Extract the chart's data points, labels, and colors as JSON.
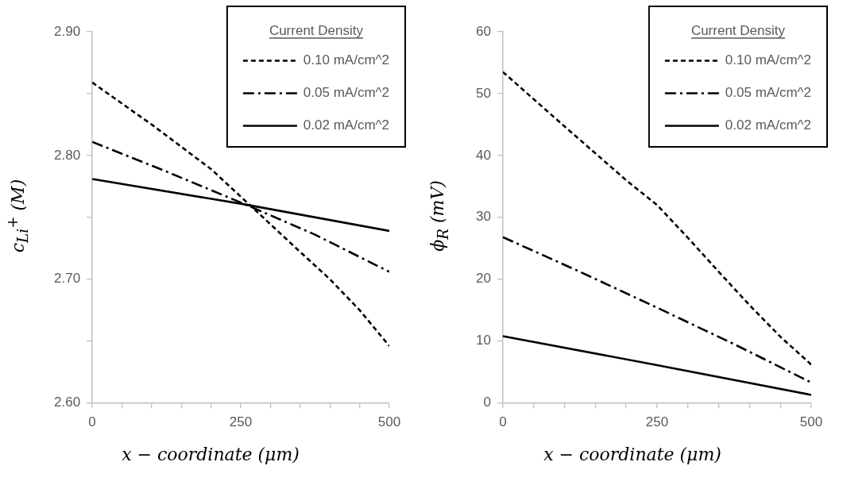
{
  "chart_data": [
    {
      "type": "line",
      "xlabel": "x − coordinate (μm)",
      "ylabel": "c$_{Li}$$^{+}$ (M)",
      "legend_title": "Current Density",
      "legend": "top right",
      "grid": false,
      "marker": "none",
      "x": [
        0,
        100,
        200,
        265,
        350,
        400,
        450,
        500
      ],
      "xlim": [
        0,
        500
      ],
      "xticks": [
        0,
        {
          "value": 50,
          "label": null
        },
        {
          "value": 100,
          "label": null
        },
        {
          "value": 150,
          "label": null
        },
        {
          "value": 200,
          "label": null
        },
        250,
        {
          "value": 300,
          "label": null
        },
        {
          "value": 350,
          "label": null
        },
        {
          "value": 400,
          "label": null
        },
        {
          "value": 450,
          "label": null
        },
        500
      ],
      "ylim": [
        2.6,
        2.9
      ],
      "yticks": [
        {
          "value": 2.6,
          "label": "2.60"
        },
        {
          "value": 2.65,
          "label": null
        },
        {
          "value": 2.7,
          "label": "2.70"
        },
        {
          "value": 2.75,
          "label": null
        },
        {
          "value": 2.8,
          "label": "2.80"
        },
        {
          "value": 2.85,
          "label": null
        },
        {
          "value": 2.9,
          "label": "2.90"
        }
      ],
      "series": [
        {
          "name": "0.10 mA/cm^2",
          "color": "#000000",
          "line_style": "dashed",
          "values": [
            2.859,
            2.825,
            2.789,
            2.76,
            2.722,
            2.7,
            2.675,
            2.646
          ]
        },
        {
          "name": "0.05 mA/cm^2",
          "color": "#000000",
          "line_style": "dashdot",
          "x": [
            0,
            125,
            250,
            375,
            500
          ],
          "values": [
            2.811,
            2.787,
            2.762,
            2.736,
            2.706
          ]
        },
        {
          "name": "0.02 mA/cm^2",
          "color": "#000000",
          "line_style": "solid",
          "x": [
            0,
            250,
            500
          ],
          "values": [
            2.781,
            2.761,
            2.739
          ]
        }
      ]
    },
    {
      "type": "line",
      "xlabel": "x − coordinate (μm)",
      "ylabel": "ϕ$_{R}$ (mV)",
      "legend_title": "Current Density",
      "legend": "top right",
      "grid": false,
      "marker": "none",
      "x": [
        0,
        100,
        200,
        250,
        300,
        350,
        400,
        450,
        500
      ],
      "xlim": [
        0,
        500
      ],
      "xticks": [
        0,
        {
          "value": 50,
          "label": null
        },
        {
          "value": 100,
          "label": null
        },
        {
          "value": 150,
          "label": null
        },
        {
          "value": 200,
          "label": null
        },
        250,
        {
          "value": 300,
          "label": null
        },
        {
          "value": 350,
          "label": null
        },
        {
          "value": 400,
          "label": null
        },
        {
          "value": 450,
          "label": null
        },
        500
      ],
      "ylim": [
        0,
        60
      ],
      "yticks": [
        0,
        10,
        20,
        30,
        40,
        50,
        60
      ],
      "series": [
        {
          "name": "0.10 mA/cm^2",
          "color": "#000000",
          "line_style": "dashed",
          "values": [
            53.5,
            44.7,
            36.0,
            32.0,
            26.7,
            21.2,
            15.8,
            10.7,
            6.2
          ]
        },
        {
          "name": "0.05 mA/cm^2",
          "color": "#000000",
          "line_style": "dashdot",
          "x": [
            0,
            125,
            250,
            375,
            500
          ],
          "values": [
            26.8,
            21.2,
            15.4,
            9.5,
            3.3
          ]
        },
        {
          "name": "0.02 mA/cm^2",
          "color": "#000000",
          "line_style": "solid",
          "x": [
            0,
            250,
            500
          ],
          "values": [
            10.8,
            6.1,
            1.3
          ]
        }
      ]
    }
  ]
}
